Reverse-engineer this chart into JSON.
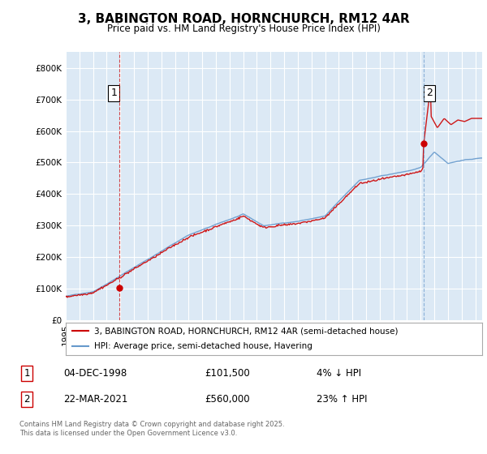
{
  "title": "3, BABINGTON ROAD, HORNCHURCH, RM12 4AR",
  "subtitle": "Price paid vs. HM Land Registry's House Price Index (HPI)",
  "ylim": [
    0,
    850000
  ],
  "yticks": [
    0,
    100000,
    200000,
    300000,
    400000,
    500000,
    600000,
    700000,
    800000
  ],
  "background_color": "#ffffff",
  "plot_bg_color": "#dce9f5",
  "grid_color": "#ffffff",
  "red_color": "#cc0000",
  "blue_color": "#6699cc",
  "marker1_year": 1998.92,
  "marker1_value": 101500,
  "marker1_label": "1",
  "marker2_year": 2021.22,
  "marker2_value": 560000,
  "marker2_label": "2",
  "legend1": "3, BABINGTON ROAD, HORNCHURCH, RM12 4AR (semi-detached house)",
  "legend2": "HPI: Average price, semi-detached house, Havering",
  "annot1_date": "04-DEC-1998",
  "annot1_price": "£101,500",
  "annot1_hpi": "4% ↓ HPI",
  "annot2_date": "22-MAR-2021",
  "annot2_price": "£560,000",
  "annot2_hpi": "23% ↑ HPI",
  "footer": "Contains HM Land Registry data © Crown copyright and database right 2025.\nThis data is licensed under the Open Government Licence v3.0."
}
